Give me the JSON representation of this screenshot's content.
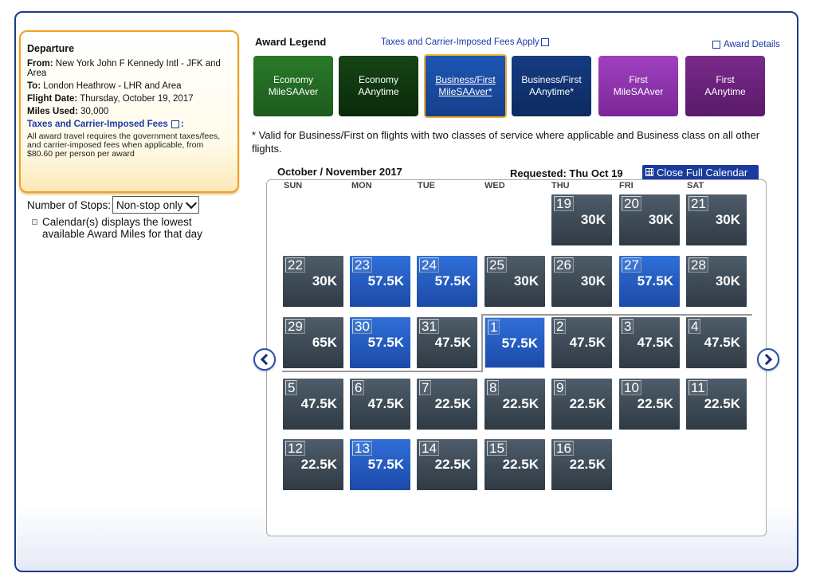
{
  "departure": {
    "title": "Departure",
    "from_label": "From:",
    "from_value": "New York John F Kennedy Intl - JFK and Area",
    "to_label": "To:",
    "to_value": "London Heathrow - LHR and Area",
    "date_label": "Flight Date:",
    "date_value": "Thursday, October 19, 2017",
    "miles_label": "Miles Used:",
    "miles_value": "30,000",
    "fees_link": "Taxes and Carrier-Imposed Fees",
    "fees_suffix": ":",
    "fees_note": "All award travel requires the government taxes/fees, and carrier-imposed fees when applicable, from $80.60 per person per award"
  },
  "filters": {
    "stops_label": "Number of Stops:",
    "stops_value": "Non-stop only",
    "calendar_note": "Calendar(s) displays the lowest available Award Miles for that day"
  },
  "legend": {
    "title": "Award Legend",
    "taxes_link": "Taxes and Carrier-Imposed Fees Apply",
    "details_link": "Award Details",
    "buttons": [
      {
        "line1": "Economy",
        "line2": "MileSAAver"
      },
      {
        "line1": "Economy",
        "line2": "AAnytime"
      },
      {
        "line1": "Business/First",
        "line2": "MileSAAver*"
      },
      {
        "line1": "Business/First",
        "line2": "AAnytime*"
      },
      {
        "line1": "First",
        "line2": "MileSAAver"
      },
      {
        "line1": "First",
        "line2": "AAnytime"
      }
    ],
    "note": "* Valid for Business/First on flights with two classes of service where applicable and Business class on all other flights."
  },
  "calendar": {
    "month_label": "October / November 2017",
    "requested": "Requested: Thu Oct 19",
    "close_button": "Close Full Calendar",
    "weekdays": [
      "SUN",
      "MON",
      "TUE",
      "WED",
      "THU",
      "FRI",
      "SAT"
    ],
    "days": [
      {
        "day": "19",
        "miles": "30K",
        "type": "gray"
      },
      {
        "day": "20",
        "miles": "30K",
        "type": "gray"
      },
      {
        "day": "21",
        "miles": "30K",
        "type": "gray"
      },
      {
        "day": "22",
        "miles": "30K",
        "type": "gray"
      },
      {
        "day": "23",
        "miles": "57.5K",
        "type": "blue"
      },
      {
        "day": "24",
        "miles": "57.5K",
        "type": "blue"
      },
      {
        "day": "25",
        "miles": "30K",
        "type": "gray"
      },
      {
        "day": "26",
        "miles": "30K",
        "type": "gray"
      },
      {
        "day": "27",
        "miles": "57.5K",
        "type": "blue"
      },
      {
        "day": "28",
        "miles": "30K",
        "type": "gray"
      },
      {
        "day": "29",
        "miles": "65K",
        "type": "gray"
      },
      {
        "day": "30",
        "miles": "57.5K",
        "type": "blue"
      },
      {
        "day": "31",
        "miles": "47.5K",
        "type": "gray"
      },
      {
        "day": "1",
        "miles": "57.5K",
        "type": "blue"
      },
      {
        "day": "2",
        "miles": "47.5K",
        "type": "gray"
      },
      {
        "day": "3",
        "miles": "47.5K",
        "type": "gray"
      },
      {
        "day": "4",
        "miles": "47.5K",
        "type": "gray"
      },
      {
        "day": "5",
        "miles": "47.5K",
        "type": "gray"
      },
      {
        "day": "6",
        "miles": "47.5K",
        "type": "gray"
      },
      {
        "day": "7",
        "miles": "22.5K",
        "type": "gray"
      },
      {
        "day": "8",
        "miles": "22.5K",
        "type": "gray"
      },
      {
        "day": "9",
        "miles": "22.5K",
        "type": "gray"
      },
      {
        "day": "10",
        "miles": "22.5K",
        "type": "gray"
      },
      {
        "day": "11",
        "miles": "22.5K",
        "type": "gray"
      },
      {
        "day": "12",
        "miles": "22.5K",
        "type": "gray"
      },
      {
        "day": "13",
        "miles": "57.5K",
        "type": "blue"
      },
      {
        "day": "14",
        "miles": "22.5K",
        "type": "gray"
      },
      {
        "day": "15",
        "miles": "22.5K",
        "type": "gray"
      },
      {
        "day": "16",
        "miles": "22.5K",
        "type": "gray"
      }
    ]
  }
}
